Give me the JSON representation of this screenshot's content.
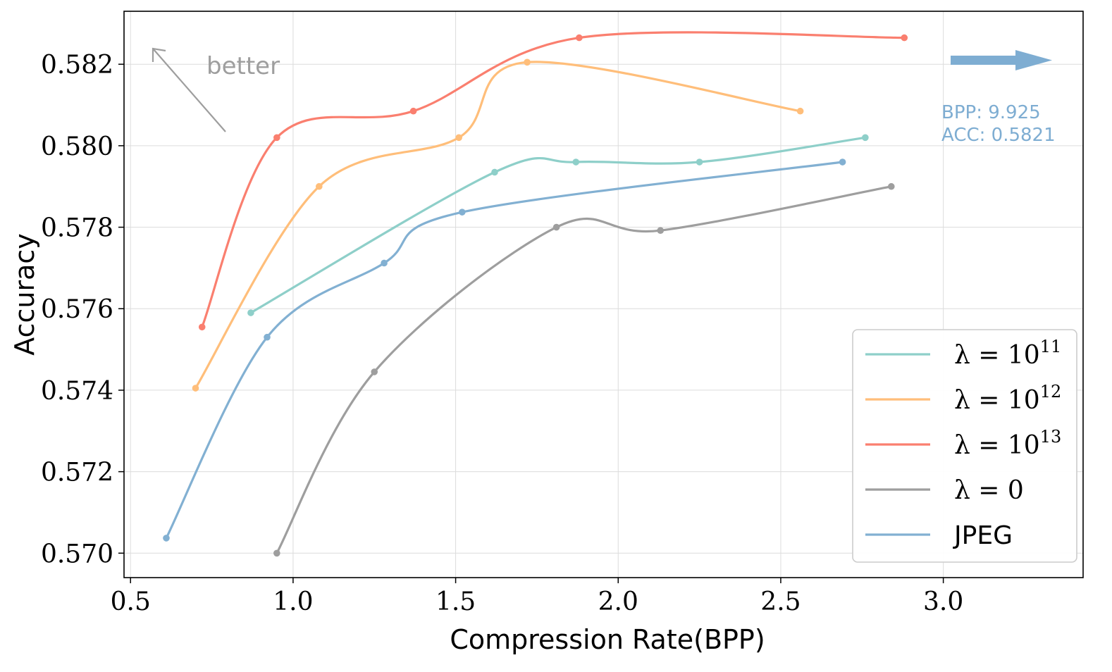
{
  "chart_data": {
    "type": "line",
    "title": "",
    "xlabel": "Compression Rate(BPP)",
    "ylabel": "Accuracy",
    "xlim": [
      0.48,
      3.43
    ],
    "ylim": [
      0.5694,
      0.5833
    ],
    "xticks": [
      0.5,
      1.0,
      1.5,
      2.0,
      2.5,
      3.0
    ],
    "xtick_labels": [
      "0.5",
      "1.0",
      "1.5",
      "2.0",
      "2.5",
      "3.0"
    ],
    "yticks": [
      0.57,
      0.572,
      0.574,
      0.576,
      0.578,
      0.58,
      0.582
    ],
    "ytick_labels": [
      "0.570",
      "0.572",
      "0.574",
      "0.576",
      "0.578",
      "0.580",
      "0.582"
    ],
    "grid": true,
    "legend_position": "bottom-right",
    "series": [
      {
        "name": "λ = 10^11",
        "legend_base": "λ = 10",
        "legend_exp": "11",
        "color": "#8ecfc9",
        "x": [
          0.87,
          1.62,
          1.87,
          2.25,
          2.76
        ],
        "y": [
          0.5759,
          0.57935,
          0.5796,
          0.5796,
          0.5802
        ]
      },
      {
        "name": "λ = 10^12",
        "legend_base": "λ = 10",
        "legend_exp": "12",
        "color": "#ffbe7a",
        "x": [
          0.7,
          1.08,
          1.51,
          1.72,
          2.56
        ],
        "y": [
          0.57405,
          0.579,
          0.5802,
          0.58205,
          0.58085
        ]
      },
      {
        "name": "λ = 10^13",
        "legend_base": "λ = 10",
        "legend_exp": "13",
        "color": "#fa7f6f",
        "x": [
          0.72,
          0.95,
          1.37,
          1.88,
          2.88
        ],
        "y": [
          0.57555,
          0.5802,
          0.58085,
          0.58265,
          0.58265
        ]
      },
      {
        "name": "λ = 0",
        "legend_base": "λ = 0",
        "legend_exp": "",
        "color": "#9e9e9e",
        "x": [
          0.95,
          1.25,
          1.81,
          2.13,
          2.84
        ],
        "y": [
          0.57,
          0.57445,
          0.578,
          0.57792,
          0.579
        ]
      },
      {
        "name": "JPEG",
        "legend_base": "JPEG",
        "legend_exp": "",
        "color": "#82b0d2",
        "x": [
          0.61,
          0.92,
          1.28,
          1.52,
          2.69
        ],
        "y": [
          0.57037,
          0.5753,
          0.57712,
          0.57837,
          0.5796
        ]
      }
    ],
    "annotations": {
      "better_text": "better",
      "bpp_text": "BPP: 9.925",
      "acc_text": "ACC: 0.5821"
    }
  }
}
